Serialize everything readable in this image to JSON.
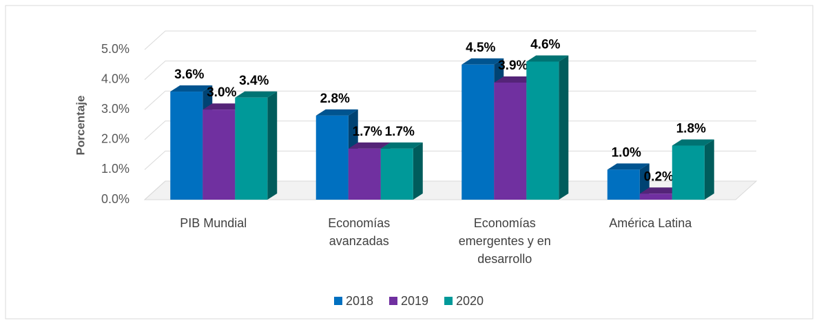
{
  "chart_data": {
    "type": "bar3d",
    "y_axis_label": "Porcentaje",
    "categories": [
      "PIB Mundial",
      "Economías avanzadas",
      "Economías emergentes y en desarrollo",
      "América Latina"
    ],
    "series": [
      {
        "name": "2018",
        "color": "#0070c0",
        "values": [
          3.6,
          2.8,
          4.5,
          1.0
        ],
        "value_labels": [
          "3.6%",
          "2.8%",
          "4.5%",
          "1.0%"
        ]
      },
      {
        "name": "2019",
        "color": "#7030a0",
        "values": [
          3.0,
          1.7,
          3.9,
          0.2
        ],
        "value_labels": [
          "3.0%",
          "1.7%",
          "3.9%",
          "0.2%"
        ]
      },
      {
        "name": "2020",
        "color": "#009999",
        "values": [
          3.4,
          1.7,
          4.6,
          1.8
        ],
        "value_labels": [
          "3.4%",
          "1.7%",
          "4.6%",
          "1.8%"
        ]
      }
    ],
    "ylim": [
      0,
      5
    ],
    "yticks": [
      {
        "value": 0,
        "label": "0.0%"
      },
      {
        "value": 1,
        "label": "1.0%"
      },
      {
        "value": 2,
        "label": "2.0%"
      },
      {
        "value": 3,
        "label": "3.0%"
      },
      {
        "value": 4,
        "label": "4.0%"
      },
      {
        "value": 5,
        "label": "5.0%"
      }
    ],
    "grid": true,
    "legend": "bottom"
  }
}
